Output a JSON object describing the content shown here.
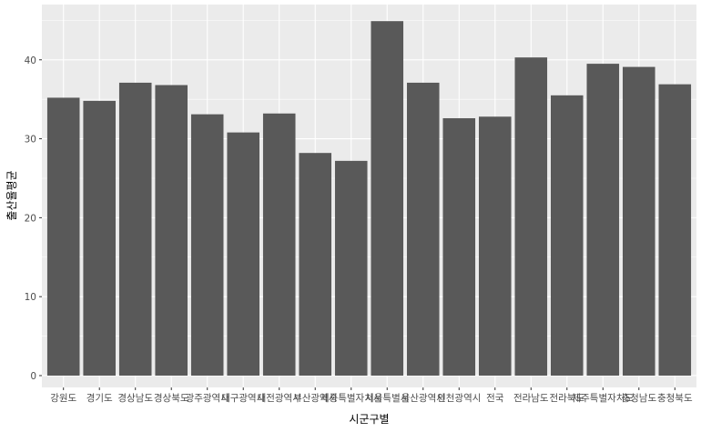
{
  "chart_data": {
    "type": "bar",
    "title": "",
    "xlabel": "시군구별",
    "ylabel": "출산율평균",
    "categories": [
      "강원도",
      "경기도",
      "경상남도",
      "경상북도",
      "광주광역시",
      "대구광역시",
      "대전광역시",
      "부산광역시",
      "세종특별자치시",
      "서울특별시",
      "울산광역시",
      "인천광역시",
      "전국",
      "전라남도",
      "전라북도",
      "제주특별자치도",
      "충청남도",
      "충청북도"
    ],
    "values": [
      35.2,
      34.8,
      37.1,
      36.8,
      33.1,
      30.8,
      33.2,
      28.2,
      27.2,
      44.9,
      37.1,
      32.6,
      32.8,
      40.3,
      35.5,
      39.5,
      39.1,
      36.9
    ],
    "ylim": [
      -1.5,
      47
    ],
    "yticks": [
      0,
      10,
      20,
      30,
      40
    ],
    "grid": true,
    "colors": {
      "panel": "#ebebeb",
      "grid_major": "#ffffff",
      "bar": "#595959"
    }
  }
}
